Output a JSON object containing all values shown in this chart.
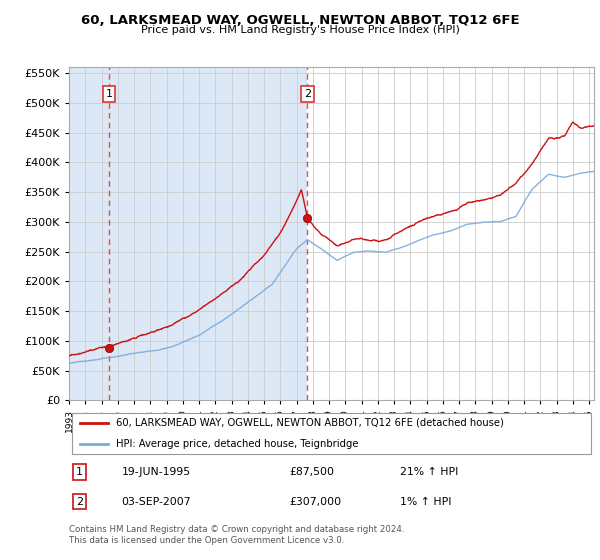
{
  "title": "60, LARKSMEAD WAY, OGWELL, NEWTON ABBOT, TQ12 6FE",
  "subtitle": "Price paid vs. HM Land Registry's House Price Index (HPI)",
  "legend_line1": "60, LARKSMEAD WAY, OGWELL, NEWTON ABBOT, TQ12 6FE (detached house)",
  "legend_line2": "HPI: Average price, detached house, Teignbridge",
  "annotation1_label": "1",
  "annotation1_date": "19-JUN-1995",
  "annotation1_price": "£87,500",
  "annotation1_hpi": "21% ↑ HPI",
  "annotation2_label": "2",
  "annotation2_date": "03-SEP-2007",
  "annotation2_price": "£307,000",
  "annotation2_hpi": "1% ↑ HPI",
  "footer": "Contains HM Land Registry data © Crown copyright and database right 2024.\nThis data is licensed under the Open Government Licence v3.0.",
  "sale1_year": 1995.47,
  "sale1_value": 87500,
  "sale2_year": 2007.67,
  "sale2_value": 307000,
  "hpi_color": "#7aabdc",
  "price_color": "#cc1111",
  "sale_dot_color": "#cc1111",
  "dashed_line_color": "#dd3333",
  "background_plot": "#f0f4fa",
  "background_white": "#ffffff",
  "left_shade_color": "#dce8f5",
  "ylim_min": 0,
  "ylim_max": 560000,
  "xlim_min": 1993,
  "xlim_max": 2025.3,
  "sale1_vline_x": 1995.47,
  "sale2_vline_x": 2007.67
}
